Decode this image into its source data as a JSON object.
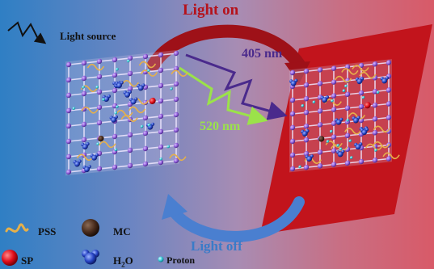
{
  "labels": {
    "light_source": "Light source",
    "light_on": "Light on",
    "light_off": "Light off",
    "wavelength_405": "405 nm",
    "wavelength_520": "520 nm"
  },
  "legend": {
    "pss": "PSS",
    "mc": "MC",
    "sp": "SP",
    "h2o": "H2O",
    "proton": "Proton"
  },
  "colors": {
    "light_on": "#b5121b",
    "light_off": "#3a7bc8",
    "violet_405": "#4a2a8c",
    "green_520": "#9be24a",
    "lattice": "#8e5bd8",
    "red_panel": "#c2141c"
  }
}
